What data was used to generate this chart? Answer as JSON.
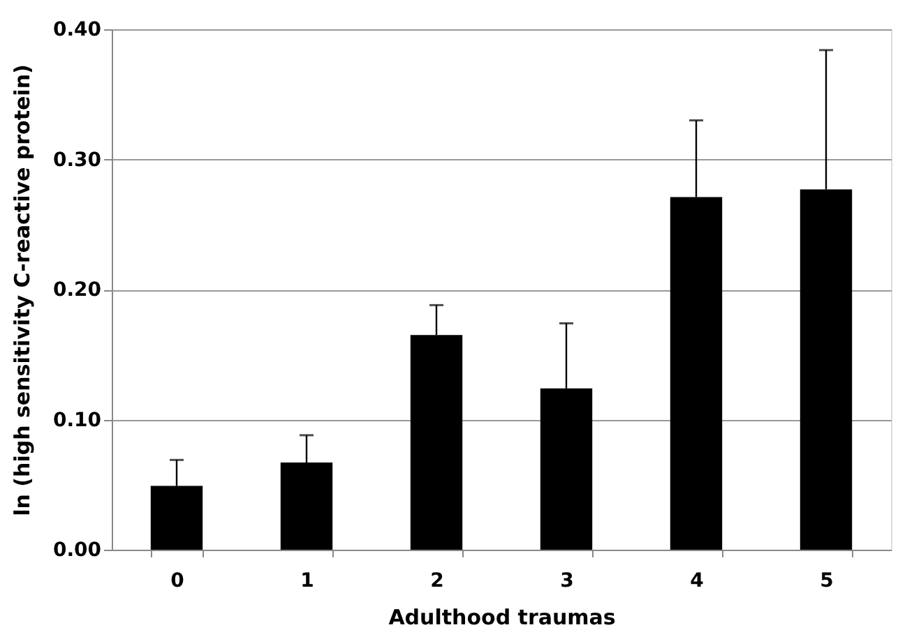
{
  "chart_data": {
    "type": "bar",
    "xlabel": "Adulthood traumas",
    "ylabel": "ln (high sensitivity C-reactive protein)",
    "categories": [
      "0",
      "1",
      "2",
      "3",
      "4",
      "5"
    ],
    "values": [
      0.049,
      0.067,
      0.165,
      0.124,
      0.271,
      0.277
    ],
    "errors": [
      [
        0.049,
        0.069
      ],
      [
        0.067,
        0.088
      ],
      [
        0.165,
        0.188
      ],
      [
        0.124,
        0.174
      ],
      [
        0.271,
        0.33
      ],
      [
        0.277,
        0.384
      ]
    ],
    "color": "#000000",
    "ylim": [
      0,
      0.4
    ],
    "yticks": [
      {
        "value": 0,
        "label": "0.00"
      },
      {
        "value": 0.1,
        "label": "0.10"
      },
      {
        "value": 0.2,
        "label": "0.20"
      },
      {
        "value": 0.3,
        "label": "0.30"
      },
      {
        "value": 0.4,
        "label": "0.40"
      }
    ],
    "grid": "y"
  }
}
